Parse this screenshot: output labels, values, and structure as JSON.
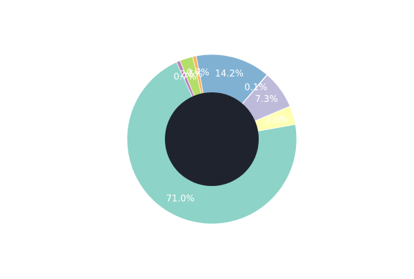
{
  "chart_data": {
    "type": "pie",
    "donut": true,
    "center_fill": "#1f232d",
    "legend": "none",
    "slices": [
      {
        "value": 71.0,
        "label": "71.0%",
        "color": "#8dd3c7"
      },
      {
        "value": 0.7,
        "label": "0.7%",
        "color": "#bc80bd"
      },
      {
        "value": 2.5,
        "label": "2.5%",
        "color": "#b3de69"
      },
      {
        "value": 0.7,
        "label": "0.7%",
        "color": "#fdb462"
      },
      {
        "value": 14.2,
        "label": "14.2%",
        "color": "#80b1d3"
      },
      {
        "value": 0.1,
        "label": "0.1%",
        "color": "#fb8072"
      },
      {
        "value": 7.3,
        "label": "7.3%",
        "color": "#bebada"
      },
      {
        "value": 3.6,
        "label": "3.6%",
        "color": "#ffffb3"
      }
    ]
  }
}
